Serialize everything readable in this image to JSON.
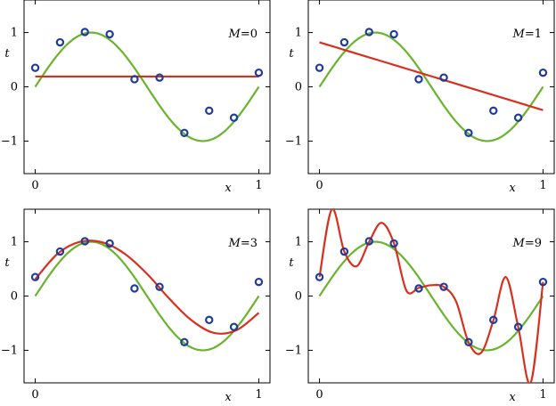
{
  "chart_data": [
    {
      "type": "line",
      "title": "",
      "label_var": "M",
      "label_val": "0",
      "xlabel": "x",
      "ylabel": "t",
      "xlim": [
        -0.05,
        1.05
      ],
      "ylim": [
        -1.6,
        1.6
      ],
      "xticks": [
        "0",
        "1"
      ],
      "yticks": [
        "1",
        "0",
        "−1"
      ],
      "grid": false,
      "points": {
        "x": [
          0,
          0.111,
          0.222,
          0.333,
          0.444,
          0.556,
          0.667,
          0.778,
          0.889,
          1
        ],
        "y": [
          0.35,
          0.82,
          1.01,
          0.97,
          0.14,
          0.17,
          -0.85,
          -0.44,
          -0.57,
          0.26
        ]
      },
      "fit_y": [
        0.19,
        0.19,
        0.19,
        0.19,
        0.19,
        0.19,
        0.19,
        0.19,
        0.19,
        0.19,
        0.19
      ]
    },
    {
      "type": "line",
      "title": "",
      "label_var": "M",
      "label_val": "1",
      "xlabel": "x",
      "ylabel": "t",
      "xlim": [
        -0.05,
        1.05
      ],
      "ylim": [
        -1.6,
        1.6
      ],
      "xticks": [
        "0",
        "1"
      ],
      "yticks": [
        "1",
        "0",
        "−1"
      ],
      "grid": false,
      "points": {
        "x": [
          0,
          0.111,
          0.222,
          0.333,
          0.444,
          0.556,
          0.667,
          0.778,
          0.889,
          1
        ],
        "y": [
          0.35,
          0.82,
          1.01,
          0.97,
          0.14,
          0.17,
          -0.85,
          -0.44,
          -0.57,
          0.26
        ]
      },
      "fit_y": [
        0.82,
        0.695,
        0.57,
        0.445,
        0.32,
        0.195,
        0.07,
        -0.055,
        -0.18,
        -0.305,
        -0.43
      ]
    },
    {
      "type": "line",
      "title": "",
      "label_var": "M",
      "label_val": "3",
      "xlabel": "x",
      "ylabel": "t",
      "xlim": [
        -0.05,
        1.05
      ],
      "ylim": [
        -1.6,
        1.6
      ],
      "xticks": [
        "0",
        "1"
      ],
      "yticks": [
        "1",
        "0",
        "−1"
      ],
      "grid": false,
      "points": {
        "x": [
          0,
          0.111,
          0.222,
          0.333,
          0.444,
          0.556,
          0.667,
          0.778,
          0.889,
          1
        ],
        "y": [
          0.35,
          0.82,
          1.01,
          0.97,
          0.14,
          0.17,
          -0.85,
          -0.44,
          -0.57,
          0.26
        ]
      },
      "fit_y": [
        0.31,
        0.78,
        1.0,
        0.99,
        0.78,
        0.41,
        -0.05,
        -0.45,
        -0.68,
        -0.63,
        -0.31
      ]
    },
    {
      "type": "line",
      "title": "",
      "label_var": "M",
      "label_val": "9",
      "xlabel": "x",
      "ylabel": "t",
      "xlim": [
        -0.05,
        1.05
      ],
      "ylim": [
        -1.6,
        1.6
      ],
      "xticks": [
        "0",
        "1"
      ],
      "yticks": [
        "1",
        "0",
        "−1"
      ],
      "grid": false,
      "points": {
        "x": [
          0,
          0.111,
          0.222,
          0.333,
          0.444,
          0.556,
          0.667,
          0.778,
          0.889,
          1
        ],
        "y": [
          0.35,
          0.82,
          1.01,
          0.97,
          0.14,
          0.17,
          -0.85,
          -0.44,
          -0.57,
          0.26
        ]
      },
      "fit_y": [
        0.35,
        1.6,
        0.82,
        0.55,
        1.0,
        1.35,
        0.97,
        0.1,
        0.15,
        0.2,
        0.17,
        -0.1,
        -0.85,
        -1.05,
        -0.45,
        0.35,
        -0.57,
        -1.6,
        0.26
      ]
    }
  ],
  "colors": {
    "truth": "#6ab42d",
    "fit": "#d7301f",
    "points": "#1f3c9a"
  }
}
